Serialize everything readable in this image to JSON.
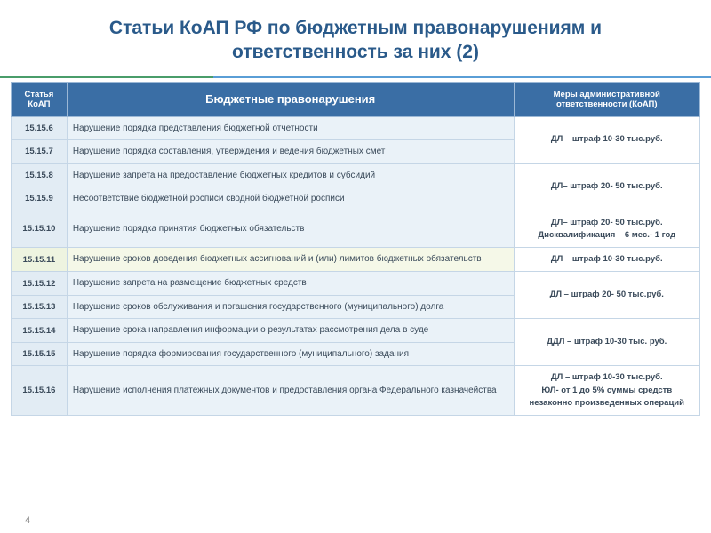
{
  "title": "Статьи КоАП РФ по бюджетным правонарушениям и ответственность за них (2)",
  "columns": {
    "article": "Статья КоАП",
    "violation": "Бюджетные правонарушения",
    "measure": "Меры административной ответственности (КоАП)"
  },
  "rows": [
    {
      "article": "15.15.6",
      "violation": "Нарушение порядка представления бюджетной отчетности"
    },
    {
      "article": "15.15.7",
      "violation": "Нарушение порядка составления, утверждения и ведения бюджетных смет"
    },
    {
      "article": "15.15.8",
      "violation": "Нарушение запрета на предоставление бюджетных кредитов и субсидий"
    },
    {
      "article": "15.15.9",
      "violation": "Несоответствие бюджетной росписи сводной бюджетной росписи"
    },
    {
      "article": "15.15.10",
      "violation": "Нарушение порядка принятия бюджетных обязательств"
    },
    {
      "article": "15.15.11",
      "violation": "Нарушение сроков доведения бюджетных ассигнований и (или) лимитов бюджетных обязательств",
      "highlight": true
    },
    {
      "article": "15.15.12",
      "violation": "Нарушение запрета на размещение бюджетных средств"
    },
    {
      "article": "15.15.13",
      "violation": "Нарушение сроков обслуживания и погашения государственного (муниципального) долга"
    },
    {
      "article": "15.15.14",
      "violation": "Нарушение срока направления информации о результатах рассмотрения дела в суде"
    },
    {
      "article": "15.15.15",
      "violation": "Нарушение порядка формирования государственного (муниципального) задания"
    },
    {
      "article": "15.15.16",
      "violation": "Нарушение исполнения платежных документов и предоставления органа Федерального казначейства"
    }
  ],
  "measures": [
    {
      "span": 2,
      "text": "ДЛ – штраф 10-30 тыс.руб."
    },
    {
      "span": 2,
      "text": "ДЛ– штраф 20- 50 тыс.руб."
    },
    {
      "span": 1,
      "text": "ДЛ– штраф 20- 50 тыс.руб.\nДисквалификация – 6 мес.- 1 год"
    },
    {
      "span": 1,
      "text": "ДЛ – штраф 10-30 тыс.руб."
    },
    {
      "span": 2,
      "text": "ДЛ – штраф 20- 50 тыс.руб."
    },
    {
      "span": 2,
      "text": "ДДЛ – штраф 10-30 тыс. руб."
    },
    {
      "span": 1,
      "text": "ДЛ – штраф 10-30 тыс.руб.\nЮЛ- от 1 до 5% суммы средств незаконно произведенных операций"
    }
  ],
  "slideNumber": "4",
  "colors": {
    "titleColor": "#2a5a8a",
    "headerBg": "#3a6ea5",
    "articleBg": "#e2ecf4",
    "violationBg": "#eaf2f8",
    "borderColor": "#c5d6e6",
    "highlightBg": "#f5f8e8",
    "accentGreen": "#4a9d6a",
    "accentBlue": "#5a9ed6"
  }
}
